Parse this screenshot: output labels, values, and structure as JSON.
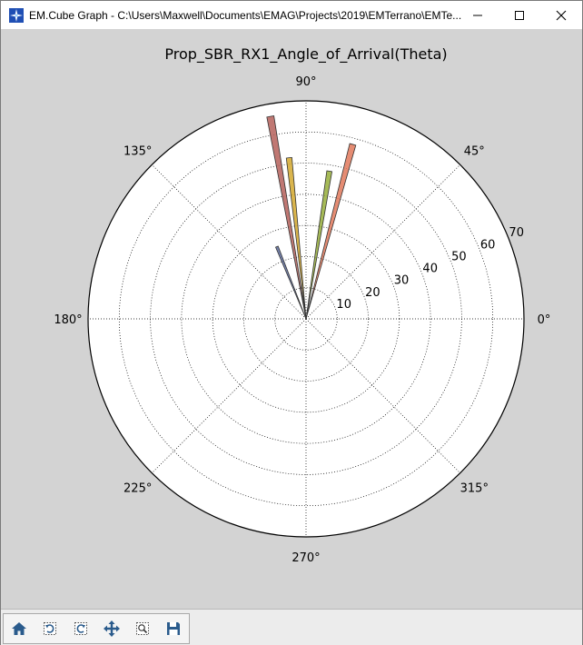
{
  "window": {
    "title": "EM.Cube Graph - C:\\Users\\Maxwell\\Documents\\EMAG\\Projects\\2019\\EMTerrano\\EMTe...",
    "controls": [
      "minimize",
      "maximize",
      "close"
    ]
  },
  "toolbar": {
    "buttons": [
      {
        "name": "home-button",
        "icon": "home-icon"
      },
      {
        "name": "back-button",
        "icon": "undo-icon"
      },
      {
        "name": "forward-button",
        "icon": "redo-icon"
      },
      {
        "name": "pan-button",
        "icon": "move-arrows-icon"
      },
      {
        "name": "zoom-button",
        "icon": "zoom-icon"
      },
      {
        "name": "save-button",
        "icon": "floppy-disk-icon"
      }
    ]
  },
  "chart_data": {
    "type": "polar-bar",
    "title": "Prop_SBR_RX1_Angle_of_Arrival(Theta)",
    "angle_unit": "degrees",
    "angle_ticks": [
      "0°",
      "45°",
      "90°",
      "135°",
      "180°",
      "225°",
      "270°",
      "315°"
    ],
    "radial_ticks": [
      "10",
      "20",
      "30",
      "40",
      "50",
      "60",
      "70"
    ],
    "rlim": [
      0,
      70
    ],
    "radial_label_angle_deg": 22.5,
    "grid": true,
    "bars": [
      {
        "angle_deg": 100,
        "value": 66,
        "color": "#b5605a"
      },
      {
        "angle_deg": 96,
        "value": 52,
        "color": "#d4a82e"
      },
      {
        "angle_deg": 75,
        "value": 58,
        "color": "#e0785a"
      },
      {
        "angle_deg": 81,
        "value": 48,
        "color": "#97ae3a"
      },
      {
        "angle_deg": 112,
        "value": 25,
        "color": "#5c6a9a"
      }
    ]
  }
}
